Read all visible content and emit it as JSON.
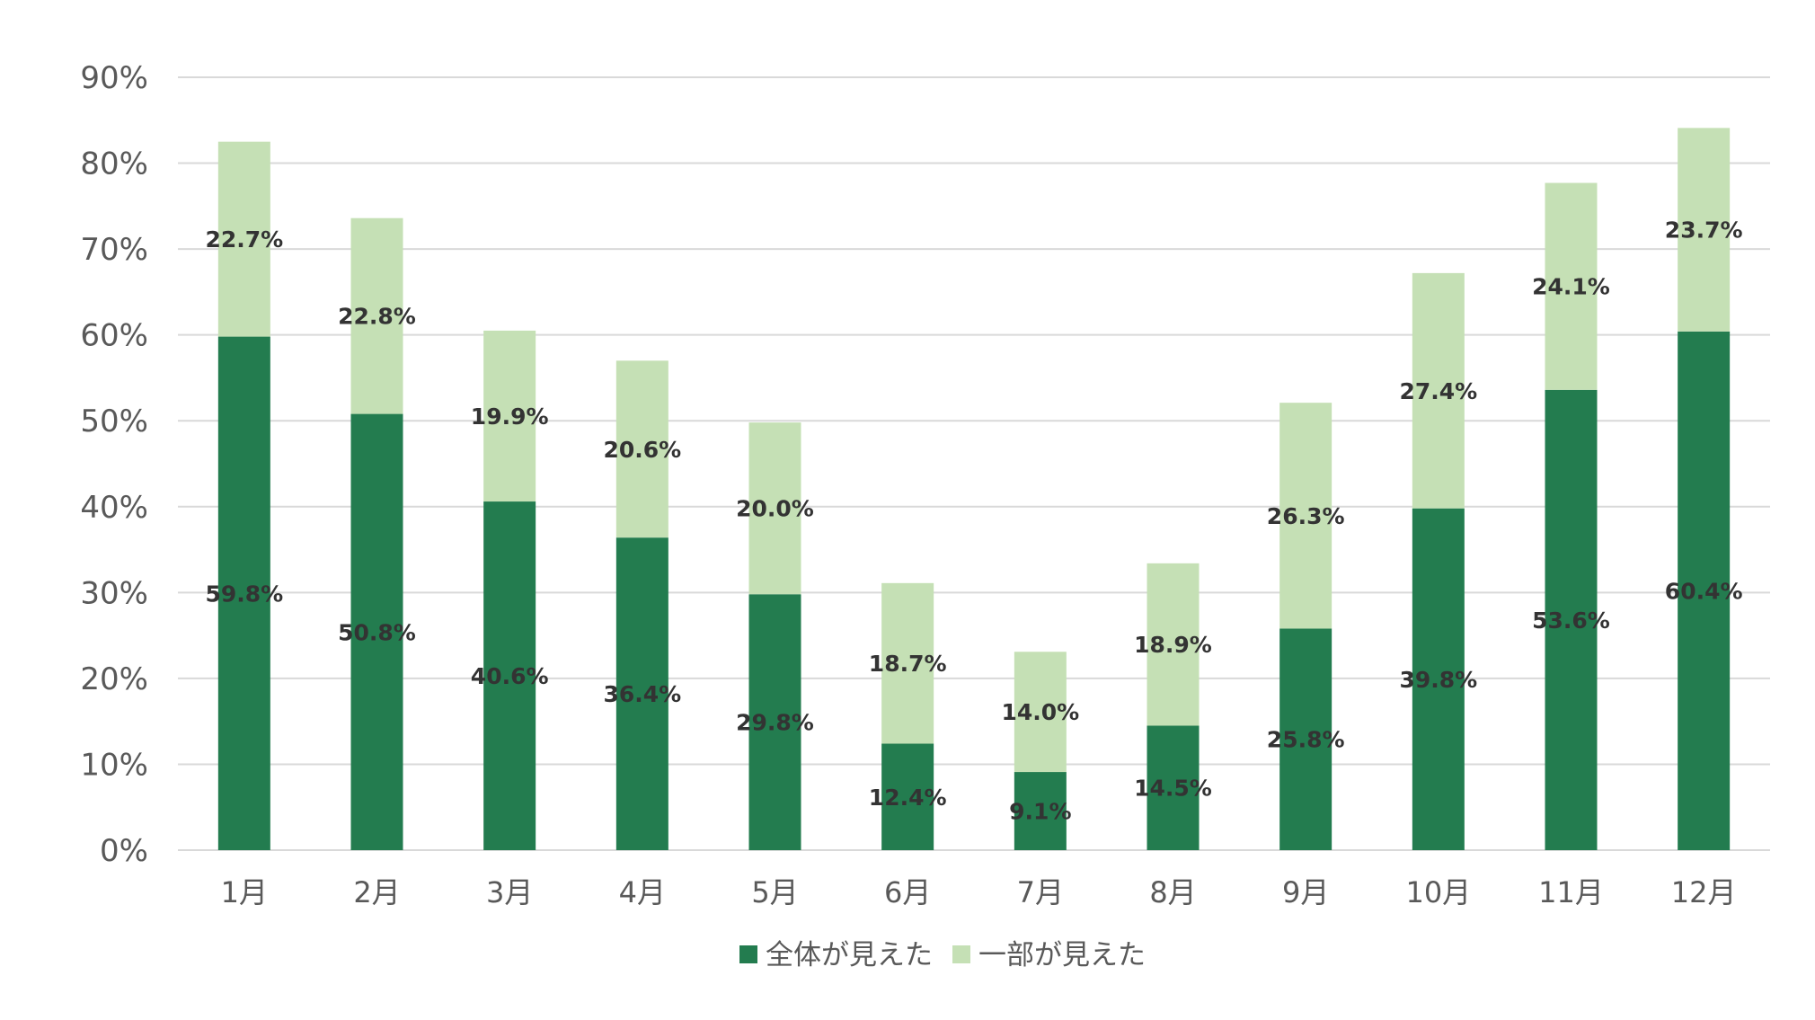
{
  "colors": {
    "full": "#237c4f",
    "partial": "#c5e0b5",
    "grid": "#d9d9d9",
    "axis_text": "#595959",
    "label_text": "#333333"
  },
  "chart_data": {
    "type": "bar",
    "stacked": true,
    "categories": [
      "1月",
      "2月",
      "3月",
      "4月",
      "5月",
      "6月",
      "7月",
      "8月",
      "9月",
      "10月",
      "11月",
      "12月"
    ],
    "series": [
      {
        "name": "全体が見えた",
        "values": [
          59.8,
          50.8,
          40.6,
          36.4,
          29.8,
          12.4,
          9.1,
          14.5,
          25.8,
          39.8,
          53.6,
          60.4
        ],
        "labels": [
          "59.8%",
          "50.8%",
          "40.6%",
          "36.4%",
          "29.8%",
          "12.4%",
          "9.1%",
          "14.5%",
          "25.8%",
          "39.8%",
          "53.6%",
          "60.4%"
        ]
      },
      {
        "name": "一部が見えた",
        "values": [
          22.7,
          22.8,
          19.9,
          20.6,
          20.0,
          18.7,
          14.0,
          18.9,
          26.3,
          27.4,
          24.1,
          23.7
        ],
        "labels": [
          "22.7%",
          "22.8%",
          "19.9%",
          "20.6%",
          "20.0%",
          "18.7%",
          "14.0%",
          "18.9%",
          "26.3%",
          "27.4%",
          "24.1%",
          "23.7%"
        ]
      }
    ],
    "ylim": [
      0,
      90
    ],
    "yticks": [
      "0%",
      "10%",
      "20%",
      "30%",
      "40%",
      "50%",
      "60%",
      "70%",
      "80%",
      "90%"
    ],
    "ytick_values": [
      0,
      10,
      20,
      30,
      40,
      50,
      60,
      70,
      80,
      90
    ],
    "grid": true,
    "legend_position": "bottom"
  }
}
